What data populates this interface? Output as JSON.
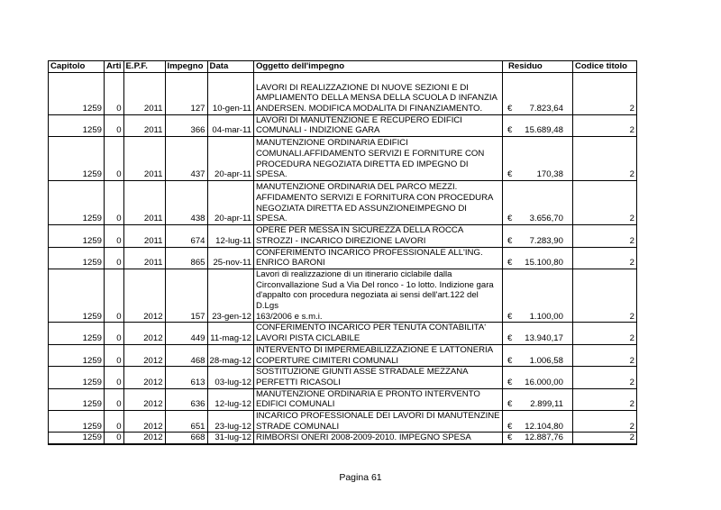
{
  "header": {
    "capitolo": "Capitolo",
    "arti": "Arti",
    "epf": "E.P.F.",
    "impegno": "Impegno",
    "data": "Data",
    "oggetto": "Oggetto dell'impegno",
    "residuo": "Residuo",
    "codice": "Codice titolo"
  },
  "currency_symbol": "€",
  "rows": [
    {
      "capitolo": "1259",
      "arti": "0",
      "epf": "2011",
      "impegno": "127",
      "data": "10-gen-11",
      "oggetto": "LAVORI DI REALIZZAZIONE DI NUOVE SEZIONI E DI\nAMPLIAMENTO DELLA MENSA DELLA SCUOLA D INFANZIA\nANDERSEN. MODIFICA MODALITA DI FINANZIAMENTO.",
      "residuo": "7.823,64",
      "codice": "2"
    },
    {
      "capitolo": "1259",
      "arti": "0",
      "epf": "2011",
      "impegno": "366",
      "data": "04-mar-11",
      "oggetto": "LAVORI DI MANUTENZIONE E RECUPERO EDIFICI\nCOMUNALI - INDIZIONE GARA",
      "residuo": "15.689,48",
      "codice": "2"
    },
    {
      "capitolo": "1259",
      "arti": "0",
      "epf": "2011",
      "impegno": "437",
      "data": "20-apr-11",
      "oggetto": "MANUTENZIONE ORDINARIA EDIFICI\nCOMUNALI.AFFIDAMENTO SERVIZI E FORNITURE CON\nPROCEDURA NEGOZIATA DIRETTA ED IMPEGNO DI\nSPESA.",
      "residuo": "170,38",
      "codice": "2"
    },
    {
      "capitolo": "1259",
      "arti": "0",
      "epf": "2011",
      "impegno": "438",
      "data": "20-apr-11",
      "oggetto": "MANUTENZIONE ORDINARIA DEL PARCO MEZZI.\nAFFIDAMENTO SERVIZI E FORNITURA CON PROCEDURA\nNEGOZIATA DIRETTA ED ASSUNZIONEIMPEGNO DI SPESA.",
      "residuo": "3.656,70",
      "codice": "2"
    },
    {
      "capitolo": "1259",
      "arti": "0",
      "epf": "2011",
      "impegno": "674",
      "data": "12-lug-11",
      "oggetto": "OPERE PER MESSA IN  SICUREZZA DELLA ROCCA\nSTROZZI - INCARICO DIREZIONE LAVORI",
      "residuo": "7.283,90",
      "codice": "2"
    },
    {
      "capitolo": "1259",
      "arti": "0",
      "epf": "2011",
      "impegno": "865",
      "data": "25-nov-11",
      "oggetto": "CONFERIMENTO INCARICO PROFESSIONALE ALL'ING.\nENRICO BARONI",
      "residuo": "15.100,80",
      "codice": "2"
    },
    {
      "capitolo": "1259",
      "arti": "0",
      "epf": "2012",
      "impegno": "157",
      "data": "23-gen-12",
      "oggetto": "Lavori di realizzazione di un itinerario ciclabile dalla\nCirconvallazione Sud a Via Del ronco - 1o lotto. Indizione gara\nd'appalto con procedura negoziata ai sensi dell'art.122 del D.Lgs\n163/2006 e s.m.i.",
      "residuo": "1.100,00",
      "codice": "2"
    },
    {
      "capitolo": "1259",
      "arti": "0",
      "epf": "2012",
      "impegno": "449",
      "data": "11-mag-12",
      "oggetto": "CONFERIMENTO INCARICO PER TENUTA CONTABILITA'\nLAVORI PISTA CICLABILE",
      "residuo": "13.940,17",
      "codice": "2"
    },
    {
      "capitolo": "1259",
      "arti": "0",
      "epf": "2012",
      "impegno": "468",
      "data": "28-mag-12",
      "oggetto": "INTERVENTO DI IMPERMEABILIZZAZIONE E LATTONERIA\nCOPERTURE CIMITERI COMUNALI",
      "residuo": "1.006,58",
      "codice": "2"
    },
    {
      "capitolo": "1259",
      "arti": "0",
      "epf": "2012",
      "impegno": "613",
      "data": "03-lug-12",
      "oggetto": "SOSTITUZIONE GIUNTI ASSE STRADALE MEZZANA\nPERFETTI RICASOLI",
      "residuo": "16.000,00",
      "codice": "2"
    },
    {
      "capitolo": "1259",
      "arti": "0",
      "epf": "2012",
      "impegno": "636",
      "data": "12-lug-12",
      "oggetto": "MANUTENZIONE ORDINARIA E PRONTO INTERVENTO\nEDIFICI COMUNALI",
      "residuo": "2.899,11",
      "codice": "2"
    },
    {
      "capitolo": "1259",
      "arti": "0",
      "epf": "2012",
      "impegno": "651",
      "data": "23-lug-12",
      "oggetto": "INCARICO PROFESSIONALE DEI LAVORI DI MANUTENZINE\nSTRADE COMUNALI",
      "residuo": "12.104,80",
      "codice": "2"
    },
    {
      "capitolo": "1259",
      "arti": "0",
      "epf": "2012",
      "impegno": "668",
      "data": "31-lug-12",
      "oggetto": "RIMBORSI ONERI 2008-2009-2010. IMPEGNO SPESA",
      "residuo": "12.887,76",
      "codice": "2"
    }
  ],
  "footer": {
    "page": "Pagina 61"
  }
}
